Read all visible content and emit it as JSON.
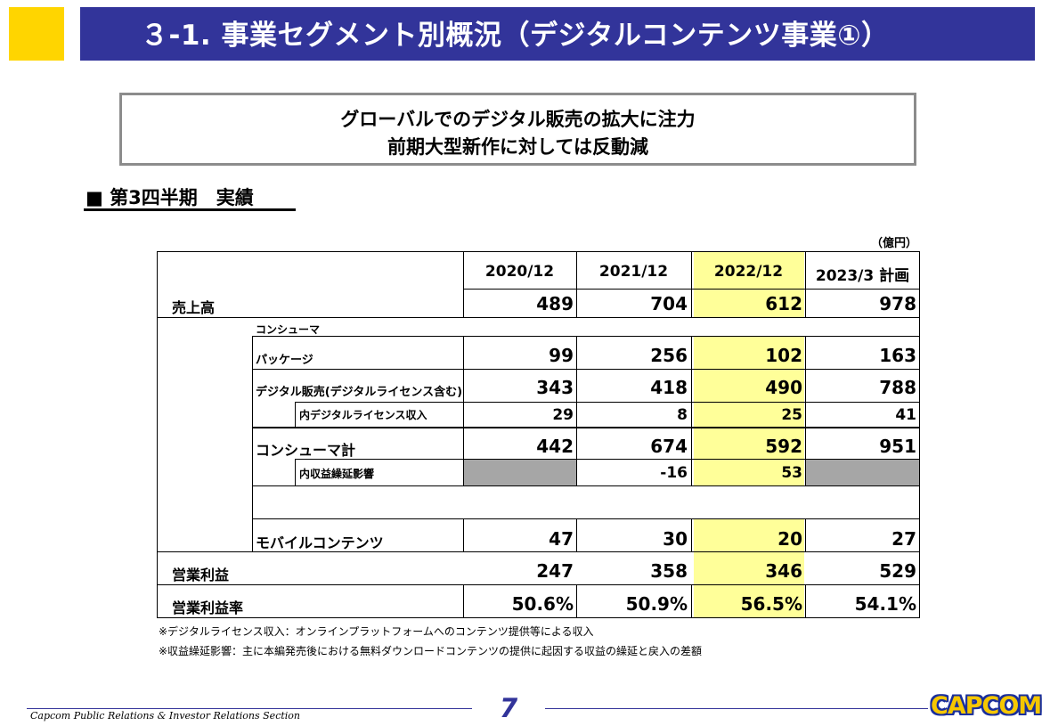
{
  "header": {
    "title": "３-1. 事業セグメント別概況（デジタルコンテンツ事業①）"
  },
  "headline": {
    "line1": "グローバルでのデジタル販売の拡大に注力",
    "line2": "前期大型新作に対しては反動減"
  },
  "section": {
    "bullet": "■",
    "title": "第3四半期　実績"
  },
  "table": {
    "unit": "（億円）",
    "columns": [
      "2020/12",
      "2021/12",
      "2022/12",
      "2023/3 計画"
    ],
    "rows": [
      {
        "label": "売上高",
        "values": [
          "489",
          "704",
          "612",
          "978"
        ]
      },
      {
        "label": "コンシューマ"
      },
      {
        "label": "パッケージ",
        "values": [
          "99",
          "256",
          "102",
          "163"
        ]
      },
      {
        "label": "デジタル販売(デジタルライセンス含む)",
        "values": [
          "343",
          "418",
          "490",
          "788"
        ]
      },
      {
        "label": "内デジタルライセンス収入",
        "values": [
          "29",
          "8",
          "25",
          "41"
        ]
      },
      {
        "label": "コンシューマ計",
        "values": [
          "442",
          "674",
          "592",
          "951"
        ]
      },
      {
        "label": "内収益繰延影響",
        "values": [
          "",
          "-16",
          "53",
          ""
        ]
      },
      {
        "label": "モバイルコンテンツ",
        "values": [
          "47",
          "30",
          "20",
          "27"
        ]
      },
      {
        "label": "営業利益",
        "values": [
          "247",
          "358",
          "346",
          "529"
        ]
      },
      {
        "label": "営業利益率",
        "values": [
          "50.6%",
          "50.9%",
          "56.5%",
          "54.1%"
        ]
      }
    ]
  },
  "notes": [
    "※デジタルライセンス収入：オンラインプラットフォームへのコンテンツ提供等による収入",
    "※収益繰延影響：主に本編発売後における無料ダウンロードコンテンツの提供に起因する収益の繰延と戻入の差額"
  ],
  "footer": {
    "department": "Capcom Public Relations & Investor Relations Section",
    "page": "7",
    "logo": "CAPCOM"
  },
  "colors": {
    "title_bar": "#32349a",
    "accent_square": "#ffd500",
    "highlight": "#ffff99",
    "gray_cell": "#a6a6a6"
  }
}
